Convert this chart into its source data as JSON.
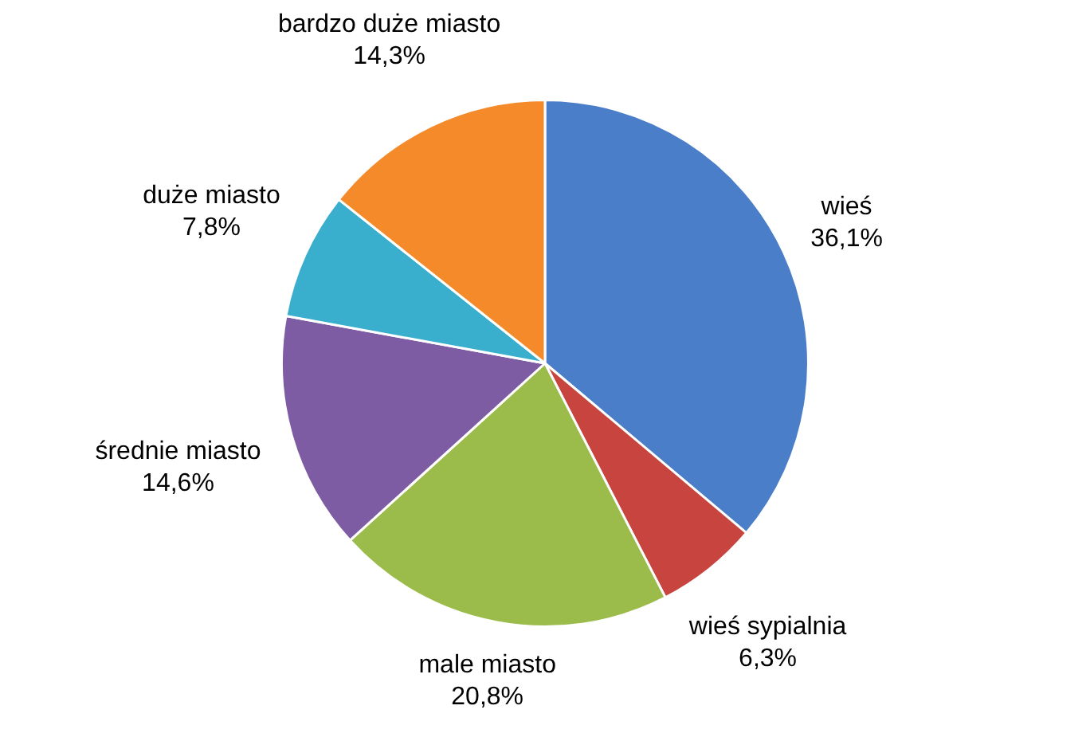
{
  "chart_data": {
    "type": "pie",
    "categories": [
      "wieś",
      "wieś sypialnia",
      "male miasto",
      "średnie miasto",
      "duże miasto",
      "bardzo duże miasto"
    ],
    "values": [
      36.1,
      6.3,
      20.8,
      14.6,
      7.8,
      14.3
    ],
    "value_labels": [
      "36,1%",
      "6,3%",
      "20,8%",
      "14,6%",
      "7,8%",
      "14,3%"
    ],
    "colors": [
      "#4a7ec8",
      "#c8443f",
      "#9bbb4a",
      "#7d5ca3",
      "#3aafcd",
      "#f58a2a"
    ],
    "legend": false
  }
}
